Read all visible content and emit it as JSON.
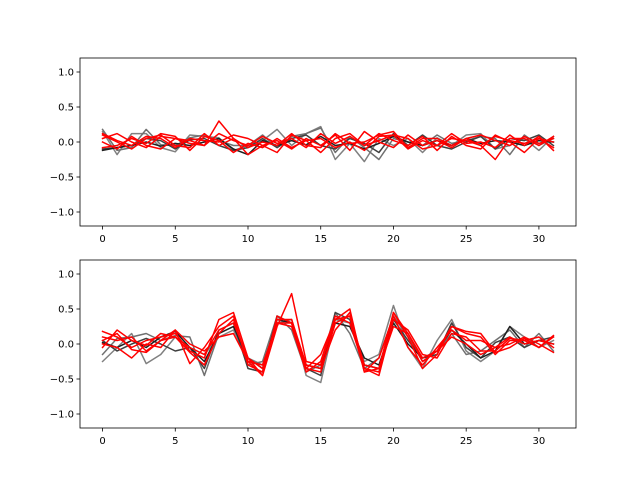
{
  "chart_data": [
    {
      "type": "line",
      "title": "",
      "xlabel": "",
      "ylabel": "",
      "xlim": [
        -1.55,
        32.55
      ],
      "ylim": [
        -1.2,
        1.2
      ],
      "xticks": [
        0,
        5,
        10,
        15,
        20,
        25,
        30
      ],
      "yticks": [
        -1.0,
        -0.5,
        0.0,
        0.5,
        1.0
      ],
      "xtick_labels": [
        "0",
        "5",
        "10",
        "15",
        "20",
        "25",
        "30"
      ],
      "ytick_labels": [
        "−1.0",
        "−0.5",
        "0.0",
        "0.5",
        "1.0"
      ],
      "x": [
        0,
        1,
        2,
        3,
        4,
        5,
        6,
        7,
        8,
        9,
        10,
        11,
        12,
        13,
        14,
        15,
        16,
        17,
        18,
        19,
        20,
        21,
        22,
        23,
        24,
        25,
        26,
        27,
        28,
        29,
        30,
        31
      ],
      "series": [
        {
          "color": "#808080",
          "values": [
            0.15,
            -0.18,
            0.12,
            0.12,
            -0.08,
            -0.14,
            0.1,
            0.08,
            0.06,
            -0.12,
            -0.05,
            0.02,
            0.18,
            -0.05,
            0.12,
            0.22,
            -0.25,
            -0.02,
            -0.28,
            0.05,
            -0.05,
            0.05,
            -0.15,
            0.06,
            -0.05,
            0.1,
            0.12,
            -0.1,
            -0.05,
            0.05,
            -0.12,
            0.08
          ]
        },
        {
          "color": "#707070",
          "values": [
            0.18,
            -0.12,
            -0.08,
            0.18,
            -0.04,
            -0.05,
            0.06,
            0.1,
            0.02,
            -0.05,
            -0.05,
            0.1,
            -0.08,
            0.08,
            0.12,
            0.2,
            -0.15,
            0.08,
            -0.08,
            -0.25,
            0.05,
            0.0,
            -0.05,
            0.1,
            -0.02,
            0.02,
            0.08,
            0.05,
            -0.18,
            0.1,
            -0.05,
            0.05
          ]
        },
        {
          "color": "#404040",
          "values": [
            -0.1,
            -0.08,
            -0.05,
            0.05,
            0.02,
            -0.1,
            0.03,
            0.05,
            -0.05,
            -0.12,
            -0.08,
            0.05,
            -0.08,
            0.05,
            0.1,
            -0.05,
            -0.1,
            0.05,
            -0.02,
            -0.15,
            0.12,
            -0.05,
            0.1,
            -0.05,
            -0.1,
            0.0,
            0.08,
            -0.1,
            0.05,
            0.02,
            0.1,
            -0.05
          ]
        },
        {
          "color": "#202020",
          "values": [
            -0.12,
            -0.08,
            -0.05,
            0.0,
            -0.06,
            -0.02,
            -0.05,
            0.0,
            0.05,
            -0.1,
            -0.18,
            0.02,
            -0.05,
            0.02,
            -0.04,
            0.08,
            -0.05,
            -0.02,
            -0.1,
            -0.02,
            0.08,
            0.0,
            -0.05,
            0.02,
            -0.05,
            0.05,
            -0.02,
            0.02,
            0.0,
            -0.05,
            0.02,
            0.0
          ]
        },
        {
          "color": "#ff0000",
          "values": [
            0.1,
            0.0,
            -0.1,
            0.05,
            0.1,
            -0.05,
            -0.08,
            0.12,
            -0.05,
            0.05,
            -0.18,
            -0.05,
            -0.15,
            0.1,
            0.02,
            -0.15,
            0.05,
            0.12,
            -0.05,
            0.12,
            0.02,
            -0.05,
            0.08,
            -0.12,
            0.08,
            -0.05,
            -0.1,
            0.1,
            0.0,
            -0.15,
            0.05,
            -0.08
          ]
        },
        {
          "color": "#ff0000",
          "values": [
            0.05,
            0.12,
            0.0,
            -0.08,
            0.08,
            0.05,
            -0.02,
            -0.05,
            0.3,
            0.05,
            -0.08,
            0.0,
            -0.05,
            0.12,
            -0.05,
            -0.08,
            0.12,
            -0.02,
            0.0,
            0.1,
            0.15,
            -0.08,
            0.05,
            0.05,
            -0.05,
            0.05,
            -0.05,
            -0.25,
            0.05,
            0.05,
            -0.05,
            0.08
          ]
        },
        {
          "color": "#ff0000",
          "values": [
            -0.08,
            -0.05,
            0.05,
            -0.02,
            0.12,
            0.08,
            -0.12,
            0.08,
            0.02,
            -0.15,
            -0.02,
            -0.08,
            0.05,
            -0.08,
            0.02,
            0.05,
            -0.08,
            0.0,
            -0.12,
            0.08,
            0.1,
            0.05,
            -0.1,
            -0.05,
            0.12,
            -0.02,
            0.0,
            -0.08,
            0.1,
            -0.05,
            0.08,
            -0.12
          ]
        },
        {
          "color": "#ff0000",
          "values": [
            0.12,
            0.02,
            -0.05,
            0.08,
            0.05,
            -0.08,
            0.05,
            0.02,
            0.0,
            0.1,
            0.05,
            -0.05,
            0.02,
            -0.1,
            0.05,
            -0.05,
            0.1,
            -0.12,
            0.15,
            0.0,
            -0.08,
            0.1,
            -0.05,
            0.02,
            -0.08,
            0.05,
            0.1,
            0.02,
            -0.05,
            0.08,
            -0.02,
            0.05
          ]
        },
        {
          "color": "#ff0000",
          "values": [
            0.0,
            -0.1,
            0.08,
            -0.05,
            -0.1,
            0.05,
            0.02,
            -0.05,
            0.12,
            0.02,
            -0.05,
            0.08,
            -0.02,
            0.05,
            -0.08,
            0.12,
            -0.02,
            0.08,
            -0.05,
            0.02,
            0.1,
            -0.1,
            0.02,
            -0.05,
            0.05,
            0.02,
            -0.05,
            0.08,
            0.02,
            -0.02,
            0.05,
            0.0
          ]
        }
      ]
    },
    {
      "type": "line",
      "title": "",
      "xlabel": "",
      "ylabel": "",
      "xlim": [
        -1.55,
        32.55
      ],
      "ylim": [
        -1.2,
        1.2
      ],
      "xticks": [
        0,
        5,
        10,
        15,
        20,
        25,
        30
      ],
      "yticks": [
        -1.0,
        -0.5,
        0.0,
        0.5,
        1.0
      ],
      "xtick_labels": [
        "0",
        "5",
        "10",
        "15",
        "20",
        "25",
        "30"
      ],
      "ytick_labels": [
        "−1.0",
        "−0.5",
        "0.0",
        "0.5",
        "1.0"
      ],
      "x": [
        0,
        1,
        2,
        3,
        4,
        5,
        6,
        7,
        8,
        9,
        10,
        11,
        12,
        13,
        14,
        15,
        16,
        17,
        18,
        19,
        20,
        21,
        22,
        23,
        24,
        25,
        26,
        27,
        28,
        29,
        30,
        31
      ],
      "series": [
        {
          "color": "#808080",
          "values": [
            -0.25,
            -0.05,
            0.15,
            -0.28,
            -0.15,
            0.1,
            -0.05,
            -0.15,
            0.1,
            0.2,
            -0.2,
            -0.3,
            0.3,
            0.35,
            -0.45,
            -0.55,
            0.35,
            0.3,
            -0.25,
            -0.15,
            0.55,
            -0.05,
            -0.35,
            0.05,
            0.35,
            -0.1,
            -0.25,
            -0.1,
            0.25,
            0.1,
            -0.05,
            0.05
          ]
        },
        {
          "color": "#707070",
          "values": [
            -0.15,
            0.08,
            0.1,
            0.15,
            0.05,
            0.12,
            0.1,
            -0.45,
            0.15,
            0.25,
            -0.3,
            -0.25,
            0.4,
            0.2,
            -0.4,
            -0.3,
            0.45,
            0.15,
            -0.35,
            -0.2,
            0.4,
            0.1,
            -0.25,
            -0.1,
            0.15,
            -0.15,
            -0.1,
            0.05,
            0.2,
            -0.05,
            0.15,
            -0.1
          ]
        },
        {
          "color": "#404040",
          "values": [
            0.05,
            -0.1,
            0.0,
            0.08,
            0.0,
            -0.1,
            -0.05,
            -0.35,
            0.2,
            0.3,
            -0.35,
            -0.4,
            0.4,
            0.3,
            -0.35,
            -0.45,
            0.45,
            0.35,
            -0.3,
            -0.35,
            0.35,
            0.05,
            -0.2,
            -0.15,
            0.3,
            -0.05,
            -0.2,
            0.02,
            0.1,
            -0.05,
            0.05,
            0.1
          ]
        },
        {
          "color": "#202020",
          "values": [
            0.02,
            -0.05,
            0.05,
            -0.05,
            0.1,
            0.18,
            -0.05,
            -0.25,
            0.15,
            0.25,
            -0.2,
            -0.35,
            0.35,
            0.3,
            -0.3,
            -0.35,
            0.3,
            0.25,
            -0.2,
            -0.3,
            0.3,
            0.0,
            -0.2,
            -0.1,
            0.2,
            0.0,
            -0.2,
            -0.1,
            0.25,
            0.0,
            0.05,
            0.0
          ]
        },
        {
          "color": "#ff0000",
          "values": [
            0.18,
            0.1,
            -0.05,
            0.05,
            0.1,
            0.15,
            -0.1,
            -0.2,
            0.35,
            0.45,
            -0.2,
            -0.45,
            0.25,
            0.72,
            -0.25,
            -0.3,
            0.35,
            0.5,
            -0.4,
            -0.35,
            0.45,
            0.15,
            -0.25,
            -0.1,
            0.25,
            0.15,
            0.1,
            -0.15,
            0.05,
            0.05,
            0.1,
            -0.05
          ]
        },
        {
          "color": "#ff0000",
          "values": [
            0.05,
            0.15,
            -0.08,
            -0.12,
            0.05,
            0.2,
            -0.28,
            -0.05,
            0.25,
            0.4,
            -0.3,
            -0.4,
            0.35,
            0.35,
            -0.3,
            -0.35,
            0.2,
            0.45,
            -0.35,
            -0.4,
            0.45,
            0.1,
            -0.35,
            -0.15,
            0.25,
            0.18,
            0.15,
            -0.12,
            -0.05,
            0.08,
            -0.05,
            0.1
          ]
        },
        {
          "color": "#ff0000",
          "values": [
            -0.05,
            0.2,
            0.05,
            -0.02,
            0.15,
            0.1,
            -0.12,
            -0.3,
            0.15,
            0.35,
            -0.25,
            -0.45,
            0.4,
            0.3,
            -0.35,
            -0.15,
            0.35,
            0.4,
            -0.4,
            -0.2,
            0.4,
            -0.05,
            -0.3,
            -0.05,
            0.2,
            0.05,
            0.05,
            -0.05,
            0.1,
            0.0,
            0.05,
            0.0
          ]
        },
        {
          "color": "#ff0000",
          "values": [
            0.1,
            0.05,
            0.1,
            -0.1,
            0.05,
            0.1,
            -0.05,
            -0.15,
            0.2,
            0.3,
            -0.2,
            -0.35,
            0.3,
            0.25,
            -0.4,
            -0.25,
            0.4,
            0.3,
            -0.35,
            -0.45,
            0.35,
            0.2,
            -0.15,
            -0.2,
            0.15,
            0.1,
            -0.1,
            -0.1,
            0.08,
            0.05,
            -0.05,
            0.12
          ]
        },
        {
          "color": "#ff0000",
          "values": [
            0.0,
            -0.05,
            -0.2,
            0.0,
            -0.05,
            0.2,
            0.0,
            -0.1,
            0.1,
            0.15,
            -0.25,
            -0.3,
            0.3,
            0.3,
            -0.35,
            -0.4,
            0.3,
            0.4,
            -0.3,
            -0.35,
            0.25,
            0.15,
            -0.2,
            -0.1,
            0.1,
            0.0,
            -0.15,
            -0.05,
            0.0,
            0.1,
            0.0,
            -0.12
          ]
        }
      ]
    }
  ]
}
